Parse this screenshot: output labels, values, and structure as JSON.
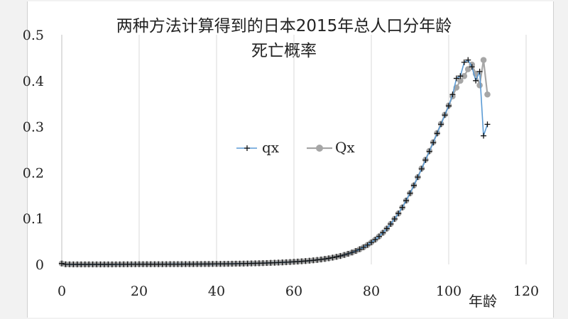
{
  "chart_data": {
    "type": "line",
    "title": "两种方法计算得到的日本2015年总人口分年龄",
    "subtitle": "死亡概率",
    "xlabel": "年龄",
    "ylabel": "",
    "xlim": [
      0,
      120
    ],
    "ylim": [
      0,
      0.5
    ],
    "x_ticks": [
      "0",
      "20",
      "40",
      "60",
      "80",
      "100",
      "120"
    ],
    "y_ticks": [
      "0",
      "0.1",
      "0.2",
      "0.3",
      "0.4",
      "0.5"
    ],
    "grid": "vertical",
    "legend_position": "center",
    "series": [
      {
        "name": "qx",
        "color": "#5b9bd5",
        "marker": "plus",
        "x": [
          0,
          1,
          2,
          3,
          4,
          5,
          6,
          7,
          8,
          9,
          10,
          11,
          12,
          13,
          14,
          15,
          16,
          17,
          18,
          19,
          20,
          21,
          22,
          23,
          24,
          25,
          26,
          27,
          28,
          29,
          30,
          31,
          32,
          33,
          34,
          35,
          36,
          37,
          38,
          39,
          40,
          41,
          42,
          43,
          44,
          45,
          46,
          47,
          48,
          49,
          50,
          51,
          52,
          53,
          54,
          55,
          56,
          57,
          58,
          59,
          60,
          61,
          62,
          63,
          64,
          65,
          66,
          67,
          68,
          69,
          70,
          71,
          72,
          73,
          74,
          75,
          76,
          77,
          78,
          79,
          80,
          81,
          82,
          83,
          84,
          85,
          86,
          87,
          88,
          89,
          90,
          91,
          92,
          93,
          94,
          95,
          96,
          97,
          98,
          99,
          100,
          101,
          102,
          103,
          104,
          105,
          106,
          107,
          108,
          109,
          110
        ],
        "values": [
          0.002,
          0.0003,
          0.0002,
          0.0001,
          0.0001,
          0.0001,
          0.0001,
          0.0001,
          0.0001,
          0.0001,
          0.0001,
          0.0001,
          0.0001,
          0.0001,
          0.0002,
          0.0002,
          0.0003,
          0.0003,
          0.0004,
          0.0004,
          0.0005,
          0.0005,
          0.0005,
          0.0005,
          0.0005,
          0.0005,
          0.0005,
          0.0005,
          0.0006,
          0.0006,
          0.0006,
          0.0006,
          0.0007,
          0.0007,
          0.0007,
          0.0008,
          0.0008,
          0.0009,
          0.0009,
          0.001,
          0.0011,
          0.0011,
          0.0012,
          0.0013,
          0.0014,
          0.0016,
          0.0017,
          0.0018,
          0.002,
          0.0022,
          0.0024,
          0.0026,
          0.0028,
          0.0031,
          0.0034,
          0.0037,
          0.004,
          0.0044,
          0.0048,
          0.0052,
          0.0057,
          0.0062,
          0.0068,
          0.0074,
          0.0081,
          0.0089,
          0.0098,
          0.0108,
          0.012,
          0.0133,
          0.0148,
          0.0165,
          0.0184,
          0.0206,
          0.0231,
          0.026,
          0.0293,
          0.0331,
          0.0374,
          0.0423,
          0.048,
          0.054,
          0.061,
          0.069,
          0.078,
          0.088,
          0.099,
          0.111,
          0.124,
          0.139,
          0.155,
          0.172,
          0.19,
          0.208,
          0.227,
          0.246,
          0.265,
          0.285,
          0.305,
          0.325,
          0.345,
          0.37,
          0.405,
          0.41,
          0.44,
          0.445,
          0.43,
          0.4,
          0.42,
          0.28,
          0.305
        ]
      },
      {
        "name": "Qx",
        "color": "#a6a6a6",
        "marker": "circle",
        "x": [
          0,
          1,
          2,
          3,
          4,
          5,
          6,
          7,
          8,
          9,
          10,
          11,
          12,
          13,
          14,
          15,
          16,
          17,
          18,
          19,
          20,
          21,
          22,
          23,
          24,
          25,
          26,
          27,
          28,
          29,
          30,
          31,
          32,
          33,
          34,
          35,
          36,
          37,
          38,
          39,
          40,
          41,
          42,
          43,
          44,
          45,
          46,
          47,
          48,
          49,
          50,
          51,
          52,
          53,
          54,
          55,
          56,
          57,
          58,
          59,
          60,
          61,
          62,
          63,
          64,
          65,
          66,
          67,
          68,
          69,
          70,
          71,
          72,
          73,
          74,
          75,
          76,
          77,
          78,
          79,
          80,
          81,
          82,
          83,
          84,
          85,
          86,
          87,
          88,
          89,
          90,
          91,
          92,
          93,
          94,
          95,
          96,
          97,
          98,
          99,
          100,
          101,
          102,
          103,
          104,
          105,
          106,
          107,
          108,
          109,
          110
        ],
        "values": [
          0.002,
          0.0003,
          0.0002,
          0.0001,
          0.0001,
          0.0001,
          0.0001,
          0.0001,
          0.0001,
          0.0001,
          0.0001,
          0.0001,
          0.0001,
          0.0001,
          0.0002,
          0.0002,
          0.0003,
          0.0003,
          0.0004,
          0.0004,
          0.0005,
          0.0005,
          0.0005,
          0.0005,
          0.0005,
          0.0005,
          0.0005,
          0.0005,
          0.0006,
          0.0006,
          0.0006,
          0.0006,
          0.0007,
          0.0007,
          0.0007,
          0.0008,
          0.0008,
          0.0009,
          0.0009,
          0.001,
          0.0011,
          0.0011,
          0.0012,
          0.0013,
          0.0014,
          0.0016,
          0.0017,
          0.0018,
          0.002,
          0.0022,
          0.0024,
          0.0026,
          0.0028,
          0.0031,
          0.0034,
          0.0037,
          0.004,
          0.0044,
          0.0048,
          0.0052,
          0.0057,
          0.0062,
          0.0068,
          0.0074,
          0.0081,
          0.0089,
          0.0098,
          0.0108,
          0.012,
          0.0133,
          0.0148,
          0.0165,
          0.0184,
          0.0206,
          0.0231,
          0.026,
          0.0293,
          0.0331,
          0.0374,
          0.0423,
          0.048,
          0.054,
          0.061,
          0.069,
          0.078,
          0.088,
          0.099,
          0.111,
          0.124,
          0.139,
          0.155,
          0.172,
          0.19,
          0.209,
          0.228,
          0.247,
          0.266,
          0.286,
          0.306,
          0.326,
          0.346,
          0.366,
          0.385,
          0.4,
          0.41,
          0.425,
          0.435,
          0.415,
          0.39,
          0.445,
          0.37
        ]
      }
    ]
  }
}
